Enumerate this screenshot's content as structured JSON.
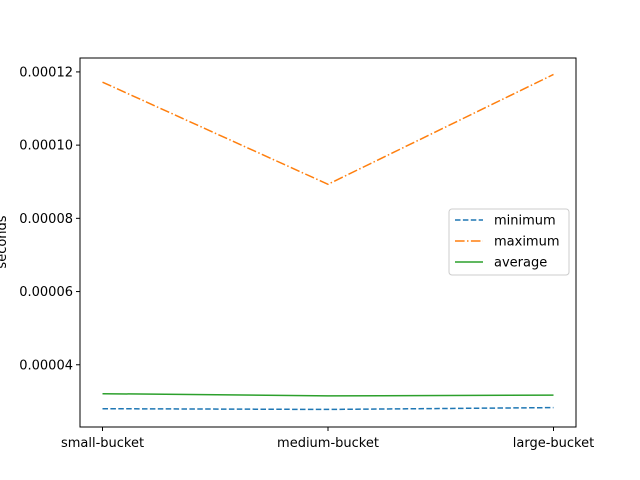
{
  "chart_data": {
    "type": "line",
    "categories": [
      "small-bucket",
      "medium-bucket",
      "large-bucket"
    ],
    "series": [
      {
        "name": "minimum",
        "values": [
          2.8e-05,
          2.78e-05,
          2.83e-05
        ],
        "color": "#1f77b4",
        "dash": "dashed"
      },
      {
        "name": "maximum",
        "values": [
          0.0001172,
          8.93e-05,
          0.0001193
        ],
        "color": "#ff7f0e",
        "dash": "dashdot"
      },
      {
        "name": "average",
        "values": [
          3.21e-05,
          3.15e-05,
          3.17e-05
        ],
        "color": "#2ca02c",
        "dash": "solid"
      }
    ],
    "title": "",
    "xlabel": "",
    "ylabel": "seconds",
    "ylim": [
      2.3e-05,
      0.0001238
    ],
    "yticks": [
      {
        "value": 4e-05,
        "label": "0.00004"
      },
      {
        "value": 6e-05,
        "label": "0.00006"
      },
      {
        "value": 8e-05,
        "label": "0.00008"
      },
      {
        "value": 0.0001,
        "label": "0.00010"
      },
      {
        "value": 0.00012,
        "label": "0.00012"
      }
    ],
    "grid": false,
    "legend_position": "center-right"
  }
}
